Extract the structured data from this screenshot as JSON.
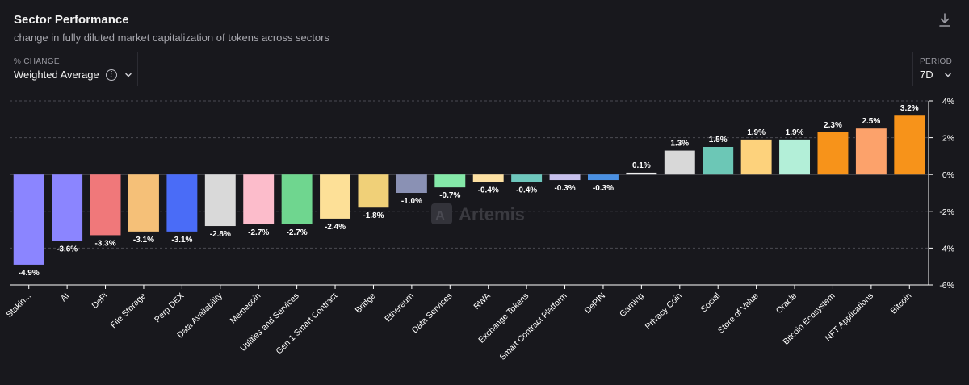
{
  "header": {
    "title": "Sector Performance",
    "subtitle": "change in fully diluted market capitalization of tokens across sectors"
  },
  "controls": {
    "metric_label": "% CHANGE",
    "metric_value": "Weighted Average",
    "info_glyph": "i",
    "period_label": "PERIOD",
    "period_value": "7D"
  },
  "icons": {
    "download": "download-icon",
    "info": "info-icon",
    "chevron": "chevron-down-icon"
  },
  "watermark": "Artemis",
  "chart_data": {
    "type": "bar",
    "title": "Sector Performance",
    "ylabel": "% CHANGE",
    "xlabel": "",
    "ylim": [
      -6,
      4
    ],
    "yticks": [
      4,
      2,
      0,
      -2,
      -4,
      -6
    ],
    "ytick_labels": [
      "4%",
      "2%",
      "0%",
      "-2%",
      "-4%",
      "-6%"
    ],
    "grid": true,
    "categories": [
      "Stakin...",
      "AI",
      "DeFi",
      "File Storage",
      "Perp DEX",
      "Data Availability",
      "Memecoin",
      "Utilities and Services",
      "Gen 1 Smart Contract",
      "Bridge",
      "Ethereum",
      "Data Services",
      "RWA",
      "Exchange Tokens",
      "Smart Contract Platform",
      "DePIN",
      "Gaming",
      "Privacy Coin",
      "Social",
      "Store of Value",
      "Oracle",
      "Bitcoin Ecosystem",
      "NFT Applications",
      "Bitcoin"
    ],
    "values": [
      -4.9,
      -3.6,
      -3.3,
      -3.1,
      -3.1,
      -2.8,
      -2.7,
      -2.7,
      -2.4,
      -1.8,
      -1.0,
      -0.7,
      -0.4,
      -0.4,
      -0.3,
      -0.3,
      0.1,
      1.3,
      1.5,
      1.9,
      1.9,
      2.3,
      2.5,
      3.2
    ],
    "value_labels": [
      "-4.9%",
      "-3.6%",
      "-3.3%",
      "-3.1%",
      "-3.1%",
      "-2.8%",
      "-2.7%",
      "-2.7%",
      "-2.4%",
      "-1.8%",
      "-1.0%",
      "-0.7%",
      "-0.4%",
      "-0.4%",
      "-0.3%",
      "-0.3%",
      "0.1%",
      "1.3%",
      "1.5%",
      "1.9%",
      "1.9%",
      "2.3%",
      "2.5%",
      "3.2%"
    ],
    "colors": [
      "#8b85ff",
      "#8b85ff",
      "#f0787a",
      "#f5c078",
      "#4a6cf7",
      "#d9d9d9",
      "#fcbccb",
      "#6fd68f",
      "#fde097",
      "#f0d078",
      "#8a91b4",
      "#84e8a8",
      "#fde0a2",
      "#6ec7bd",
      "#c7c0ec",
      "#4a90e2",
      "#f0f0f0",
      "#d8d8d8",
      "#6cc7b6",
      "#fdd27c",
      "#b3efd8",
      "#f7931a",
      "#fca26b",
      "#f7931a"
    ]
  }
}
